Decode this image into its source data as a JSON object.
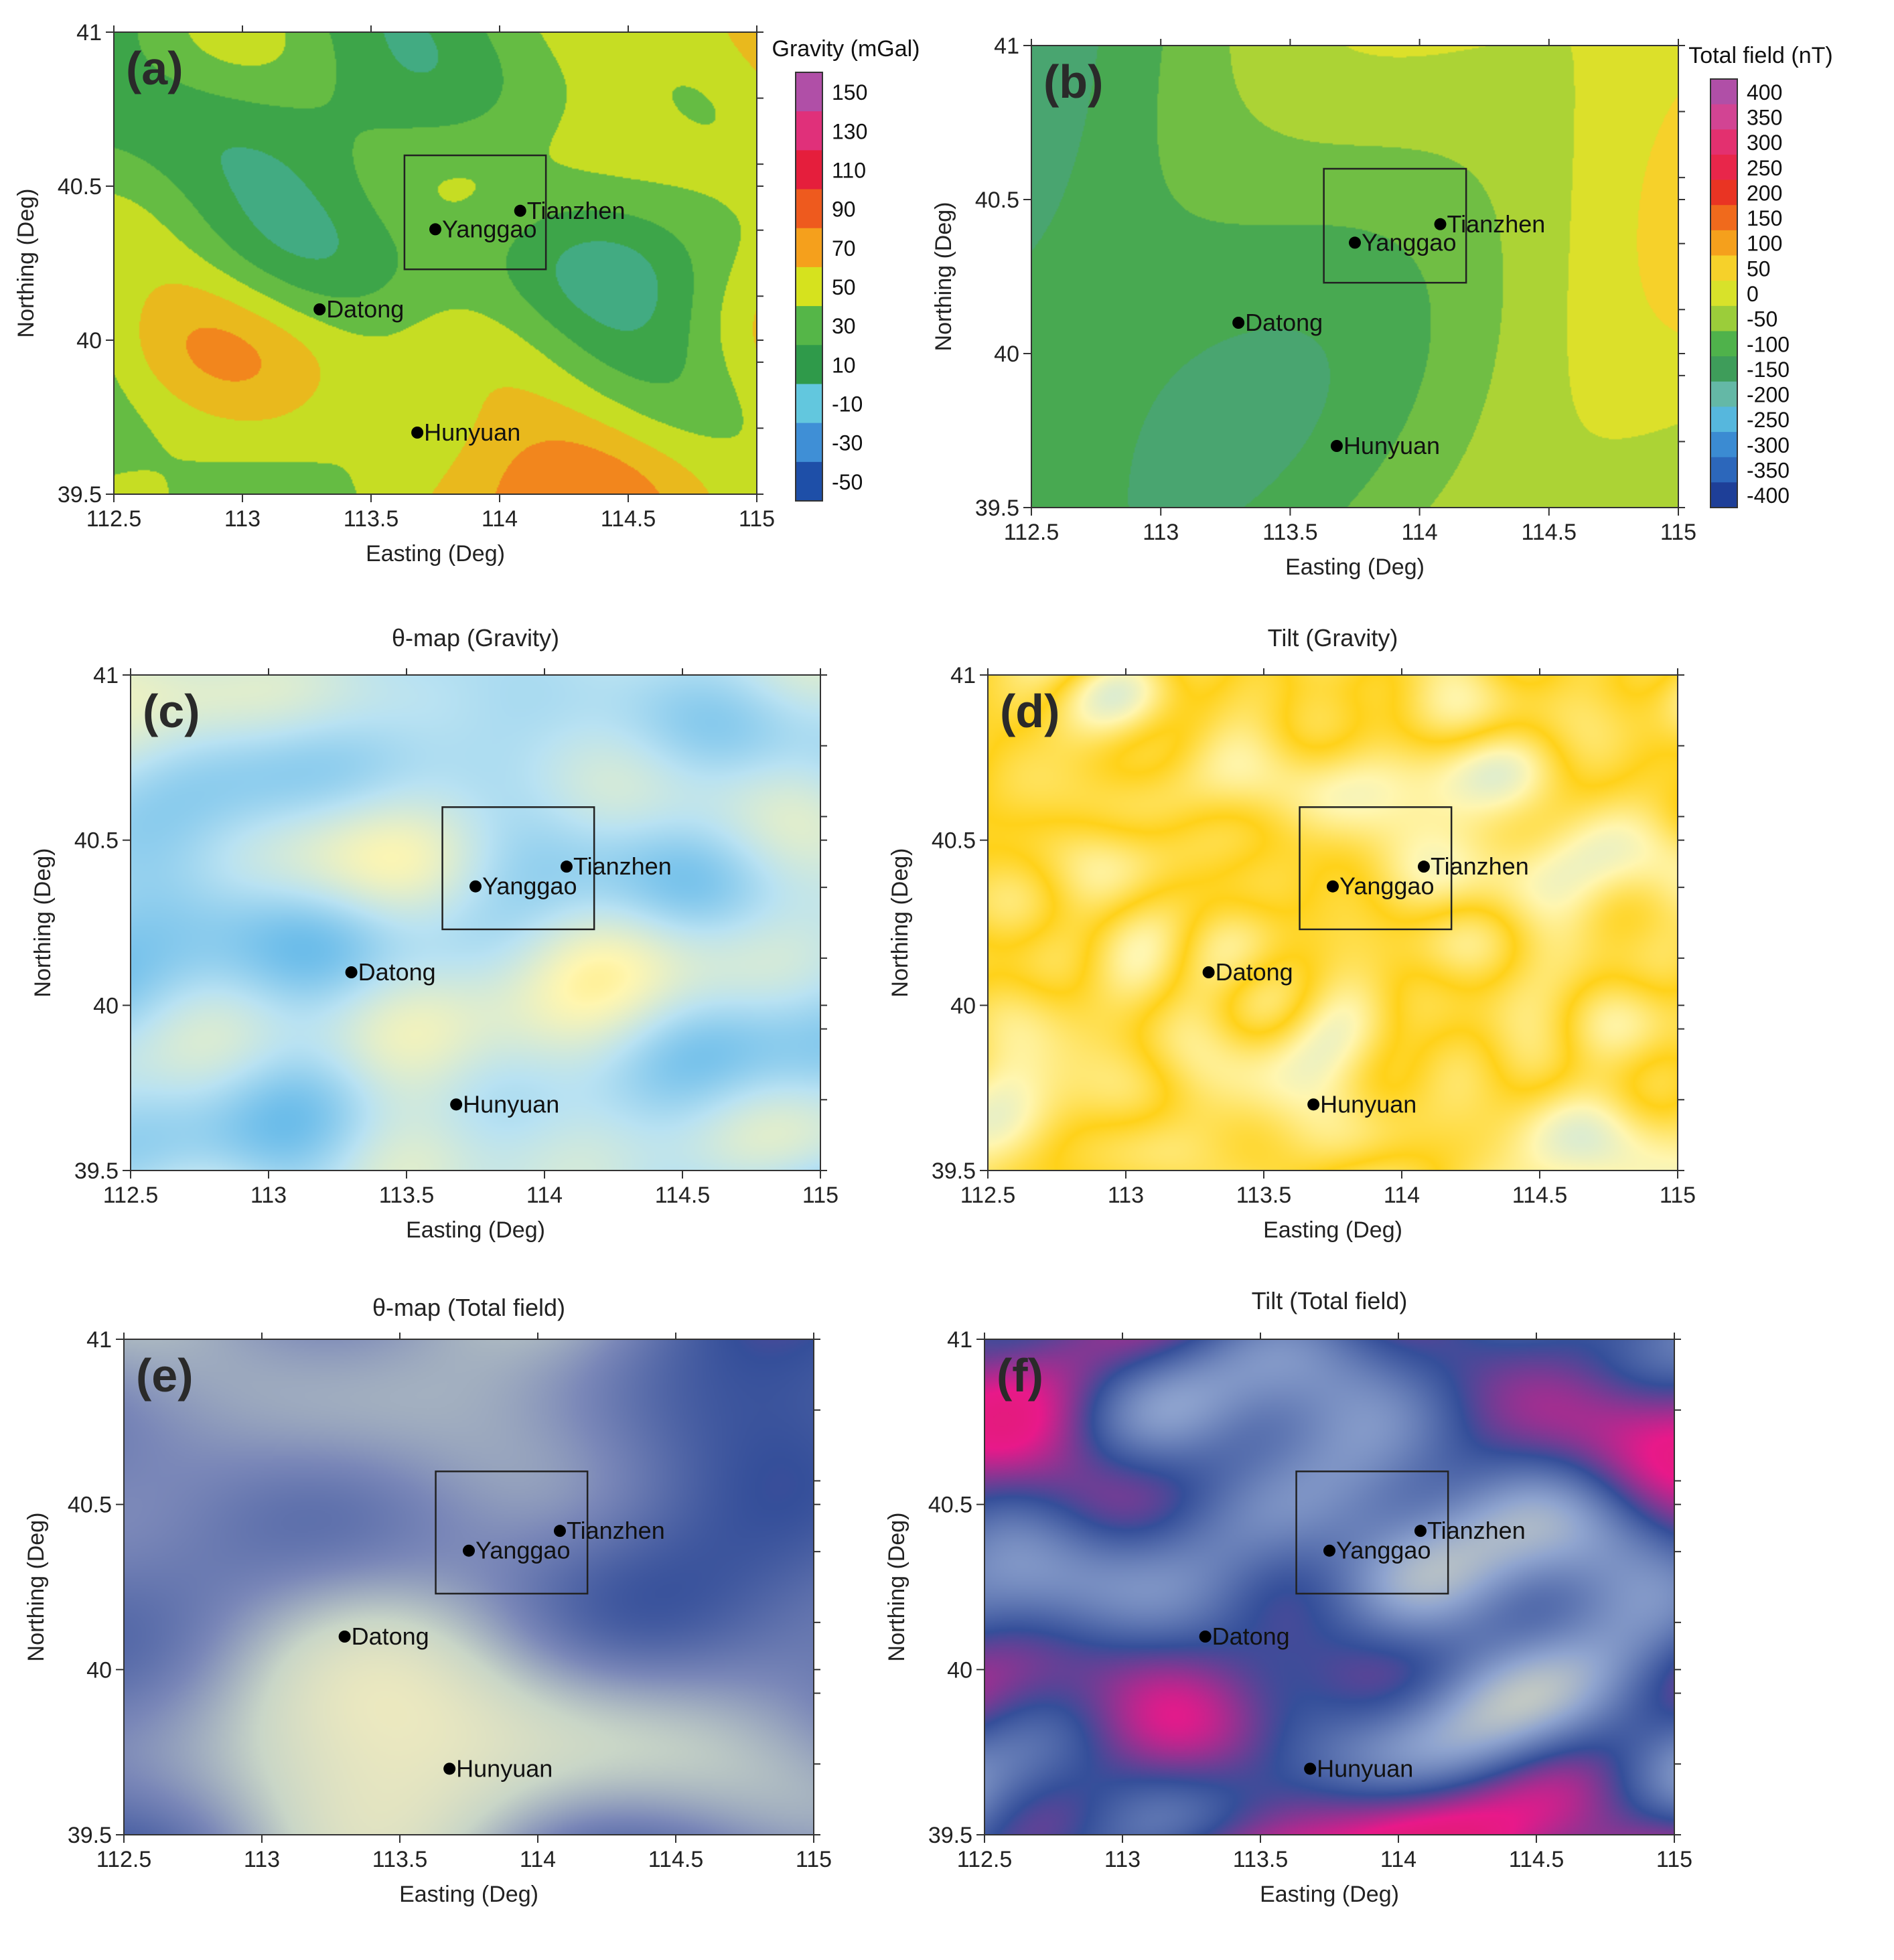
{
  "chart_data": [
    {
      "type": "heatmap",
      "panel_label": "(a)",
      "title": "",
      "xlabel": "Easting (Deg)",
      "ylabel": "Northing (Deg)",
      "xlim": [
        112.5,
        115
      ],
      "ylim": [
        39.5,
        41
      ],
      "x_ticks": [
        "112.5",
        "113",
        "113.5",
        "114",
        "114.5",
        "115"
      ],
      "y_ticks": [
        "39.5",
        "40",
        "40.5",
        "41"
      ],
      "colorbar": {
        "title": "Gravity (mGal)",
        "labels": [
          "150",
          "130",
          "110",
          "90",
          "70",
          "50",
          "30",
          "10",
          "-10",
          "-30",
          "-50"
        ],
        "colors": [
          "#b04fa7",
          "#e0307a",
          "#e51e3c",
          "#ee5a1e",
          "#f5a01c",
          "#d6e21e",
          "#55b648",
          "#2f9a4a",
          "#62c7de",
          "#3f8fd6",
          "#1e4fa8"
        ]
      },
      "study_area": {
        "x": [
          113.63,
          114.18
        ],
        "y": [
          40.23,
          40.6
        ]
      },
      "towns": [
        {
          "name": "Tianzhen",
          "x": 114.08,
          "y": 40.42
        },
        {
          "name": "Yanggao",
          "x": 113.75,
          "y": 40.36
        },
        {
          "name": "Datong",
          "x": 113.3,
          "y": 40.1
        },
        {
          "name": "Hunyuan",
          "x": 113.68,
          "y": 39.7
        }
      ],
      "palette_scheme": "gravity"
    },
    {
      "type": "heatmap",
      "panel_label": "(b)",
      "title": "",
      "xlabel": "Easting (Deg)",
      "ylabel": "Northing (Deg)",
      "xlim": [
        112.5,
        115
      ],
      "ylim": [
        39.5,
        41
      ],
      "x_ticks": [
        "112.5",
        "113",
        "113.5",
        "114",
        "114.5",
        "115"
      ],
      "y_ticks": [
        "39.5",
        "40",
        "40.5",
        "41"
      ],
      "colorbar": {
        "title": "Total field (nT)",
        "labels": [
          "400",
          "350",
          "300",
          "250",
          "200",
          "150",
          "100",
          "50",
          "0",
          "-50",
          "-100",
          "-150",
          "-200",
          "-250",
          "-300",
          "-350",
          "-400"
        ],
        "colors": [
          "#b04fa7",
          "#d24493",
          "#e3306f",
          "#e8264a",
          "#e93423",
          "#f06a1c",
          "#f5a01c",
          "#f6d12a",
          "#d8e22a",
          "#9bcd3a",
          "#4fb24b",
          "#3e9d5a",
          "#64b8a6",
          "#56b7dd",
          "#3b8bd2",
          "#2c67bb",
          "#1e3f98"
        ]
      },
      "study_area": {
        "x": [
          113.63,
          114.18
        ],
        "y": [
          40.23,
          40.6
        ]
      },
      "towns": [
        {
          "name": "Tianzhen",
          "x": 114.08,
          "y": 40.42
        },
        {
          "name": "Yanggao",
          "x": 113.75,
          "y": 40.36
        },
        {
          "name": "Datong",
          "x": 113.3,
          "y": 40.1
        },
        {
          "name": "Hunyuan",
          "x": 113.68,
          "y": 39.7
        }
      ],
      "palette_scheme": "magnetic"
    },
    {
      "type": "heatmap",
      "panel_label": "(c)",
      "title": "θ-map (Gravity)",
      "xlabel": "Easting (Deg)",
      "ylabel": "Northing (Deg)",
      "xlim": [
        112.5,
        115
      ],
      "ylim": [
        39.5,
        41
      ],
      "x_ticks": [
        "112.5",
        "113",
        "113.5",
        "114",
        "114.5",
        "115"
      ],
      "y_ticks": [
        "39.5",
        "40",
        "40.5",
        "41"
      ],
      "colorbar": null,
      "study_area": {
        "x": [
          113.63,
          114.18
        ],
        "y": [
          40.23,
          40.6
        ]
      },
      "towns": [
        {
          "name": "Tianzhen",
          "x": 114.08,
          "y": 40.42
        },
        {
          "name": "Yanggao",
          "x": 113.75,
          "y": 40.36
        },
        {
          "name": "Datong",
          "x": 113.3,
          "y": 40.1
        },
        {
          "name": "Hunyuan",
          "x": 113.68,
          "y": 39.7
        }
      ],
      "palette_scheme": "yellow-blue"
    },
    {
      "type": "heatmap",
      "panel_label": "(d)",
      "title": "Tilt  (Gravity)",
      "xlabel": "Easting (Deg)",
      "ylabel": "Northing (Deg)",
      "xlim": [
        112.5,
        115
      ],
      "ylim": [
        39.5,
        41
      ],
      "x_ticks": [
        "112.5",
        "113",
        "113.5",
        "114",
        "114.5",
        "115"
      ],
      "y_ticks": [
        "39.5",
        "40",
        "40.5",
        "41"
      ],
      "colorbar": null,
      "study_area": {
        "x": [
          113.63,
          114.18
        ],
        "y": [
          40.23,
          40.6
        ]
      },
      "towns": [
        {
          "name": "Tianzhen",
          "x": 114.08,
          "y": 40.42
        },
        {
          "name": "Yanggao",
          "x": 113.75,
          "y": 40.36
        },
        {
          "name": "Datong",
          "x": 113.3,
          "y": 40.1
        },
        {
          "name": "Hunyuan",
          "x": 113.68,
          "y": 39.7
        }
      ],
      "palette_scheme": "yellow-blue-fine"
    },
    {
      "type": "heatmap",
      "panel_label": "(e)",
      "title": "θ-map (Total field)",
      "xlabel": "Easting (Deg)",
      "ylabel": "Northing (Deg)",
      "xlim": [
        112.5,
        115
      ],
      "ylim": [
        39.5,
        41
      ],
      "x_ticks": [
        "112.5",
        "113",
        "113.5",
        "114",
        "114.5",
        "115"
      ],
      "y_ticks": [
        "39.5",
        "40",
        "40.5",
        "41"
      ],
      "colorbar": null,
      "study_area": {
        "x": [
          113.63,
          114.18
        ],
        "y": [
          40.23,
          40.6
        ]
      },
      "towns": [
        {
          "name": "Tianzhen",
          "x": 114.08,
          "y": 40.42
        },
        {
          "name": "Yanggao",
          "x": 113.75,
          "y": 40.36
        },
        {
          "name": "Datong",
          "x": 113.3,
          "y": 40.1
        },
        {
          "name": "Hunyuan",
          "x": 113.68,
          "y": 39.7
        }
      ],
      "palette_scheme": "pastel-magenta"
    },
    {
      "type": "heatmap",
      "panel_label": "(f)",
      "title": "Tilt (Total field)",
      "xlabel": "Easting (Deg)",
      "ylabel": "Northing (Deg)",
      "xlim": [
        112.5,
        115
      ],
      "ylim": [
        39.5,
        41
      ],
      "x_ticks": [
        "112.5",
        "113",
        "113.5",
        "114",
        "114.5",
        "115"
      ],
      "y_ticks": [
        "39.5",
        "40",
        "40.5",
        "41"
      ],
      "colorbar": null,
      "study_area": {
        "x": [
          113.63,
          114.18
        ],
        "y": [
          40.23,
          40.6
        ]
      },
      "towns": [
        {
          "name": "Tianzhen",
          "x": 114.08,
          "y": 40.42
        },
        {
          "name": "Yanggao",
          "x": 113.75,
          "y": 40.36
        },
        {
          "name": "Datong",
          "x": 113.3,
          "y": 40.1
        },
        {
          "name": "Hunyuan",
          "x": 113.68,
          "y": 39.7
        }
      ],
      "palette_scheme": "magenta-red"
    }
  ]
}
